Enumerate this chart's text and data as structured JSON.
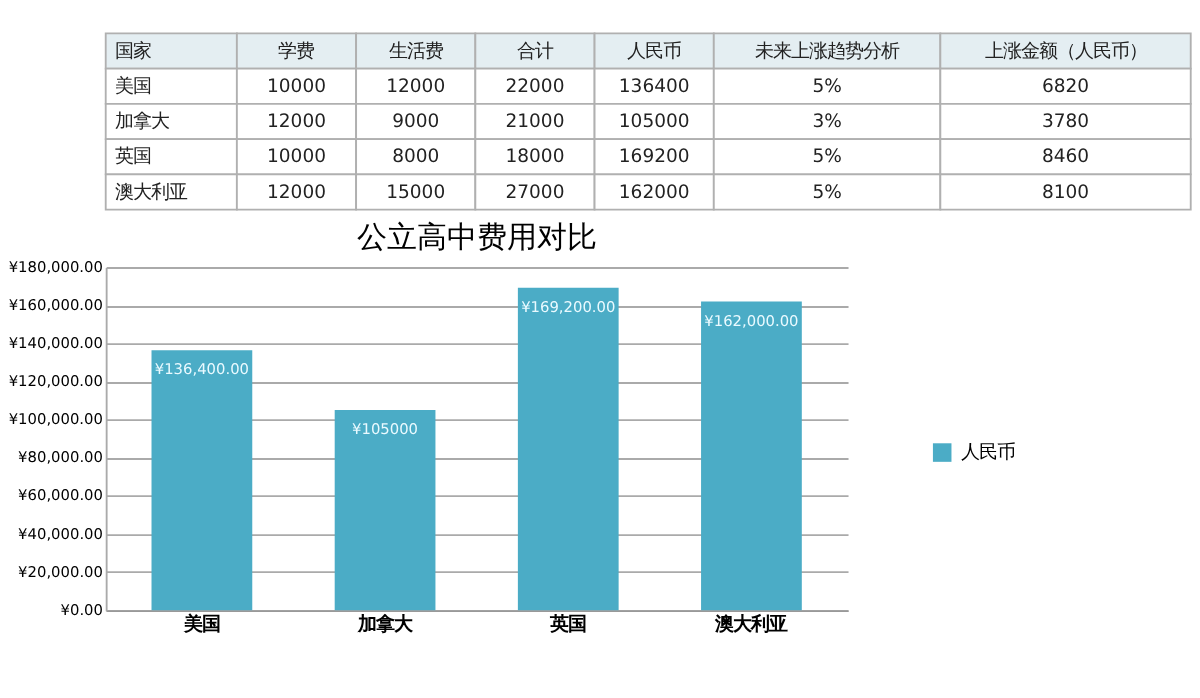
{
  "chart_data": [
    {
      "type": "other",
      "ylabel": "国家",
      "categories": [
        "美国",
        "加拿大",
        "英国",
        "澳大利亚"
      ],
      "series": [
        {
          "name": "学费",
          "values": [
            10000,
            12000,
            10000,
            12000
          ]
        },
        {
          "name": "生活费",
          "values": [
            12000,
            9000,
            8000,
            15000
          ]
        },
        {
          "name": "合计",
          "values": [
            22000,
            21000,
            18000,
            27000
          ]
        },
        {
          "name": "人民币",
          "values": [
            136400,
            105000,
            169200,
            162000
          ]
        },
        {
          "name": "未来上涨趋势分析",
          "values": [
            5,
            3,
            5,
            5
          ],
          "value_labels": [
            "5%",
            "3%",
            "5%",
            "5%"
          ]
        },
        {
          "name": "上涨金额（人民币）",
          "values": [
            6820,
            3780,
            8460,
            8100
          ]
        }
      ],
      "data_labels": true
    },
    {
      "type": "bar",
      "title": "公立高中费用对比",
      "categories": [
        "美国",
        "加拿大",
        "英国",
        "澳大利亚"
      ],
      "series": [
        {
          "name": "人民币",
          "color": "#4bacc6",
          "values": [
            136400,
            105000,
            169200,
            162000
          ]
        }
      ],
      "value_labels": [
        "¥136,400.00",
        "¥105000",
        "¥169,200.00",
        "¥162,000.00"
      ],
      "ylim": [
        0,
        180000
      ],
      "yticks": [
        {
          "value": 0,
          "label": "¥0.00"
        },
        {
          "value": 20000,
          "label": "¥20,000.00"
        },
        {
          "value": 40000,
          "label": "¥40,000.00"
        },
        {
          "value": 60000,
          "label": "¥60,000.00"
        },
        {
          "value": 80000,
          "label": "¥80,000.00"
        },
        {
          "value": 100000,
          "label": "¥100,000.00"
        },
        {
          "value": 120000,
          "label": "¥120,000.00"
        },
        {
          "value": 140000,
          "label": "¥140,000.00"
        },
        {
          "value": 160000,
          "label": "¥160,000.00"
        },
        {
          "value": 180000,
          "label": "¥180,000.00"
        }
      ],
      "grid": "y",
      "legend": "right"
    }
  ]
}
